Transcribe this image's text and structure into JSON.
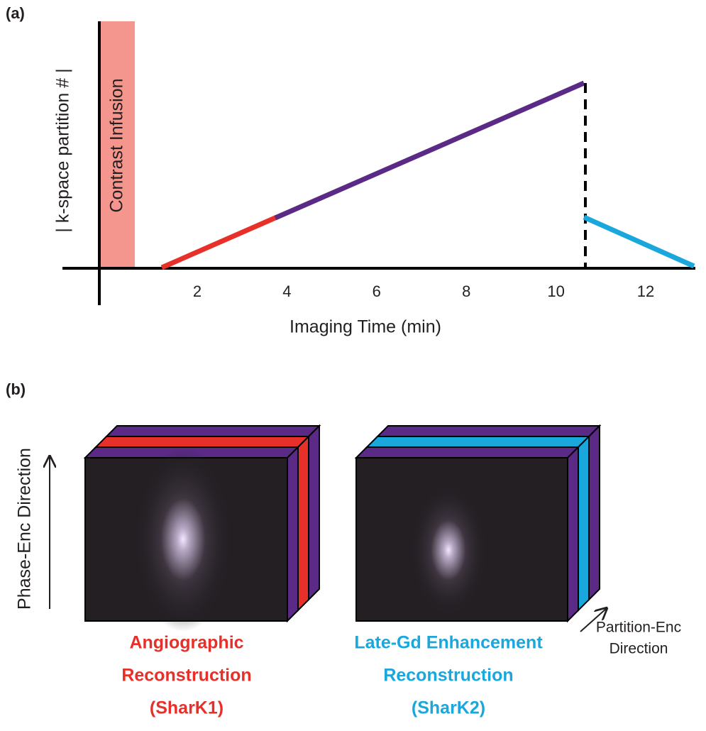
{
  "panel_a": {
    "label": "(a)",
    "y_axis_label": "| k-space partition # |",
    "x_axis_label": "Imaging Time (min)",
    "bar_label": "Contrast Infusion",
    "x_ticks": [
      "2",
      "4",
      "6",
      "8",
      "10",
      "12"
    ]
  },
  "panel_b": {
    "label": "(b)",
    "vertical_axis_label": "Phase-Enc Direction",
    "depth_axis_label": [
      "Partition-Enc",
      "Direction"
    ],
    "volumes": [
      {
        "caption": [
          "Angiographic",
          "Reconstruction",
          "(SharK1)"
        ]
      },
      {
        "caption": [
          "Late-Gd Enhancement",
          "Reconstruction",
          "(SharK2)"
        ]
      }
    ]
  }
}
